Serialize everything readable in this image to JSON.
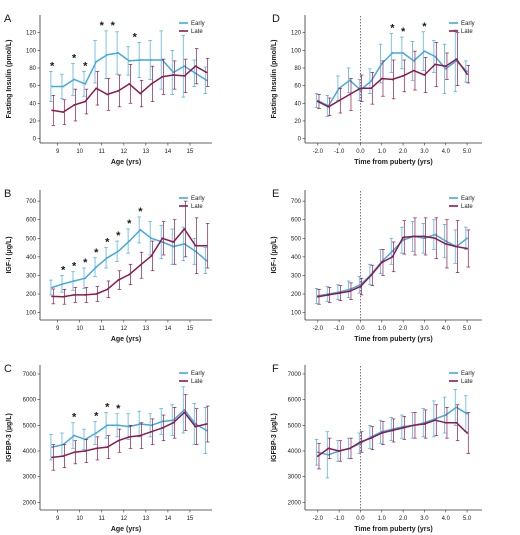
{
  "figure": {
    "colors": {
      "early": "#45a9dc",
      "late": "#8b1a4e",
      "axis": "#333333",
      "marker": "#555555"
    }
  },
  "chart_data": [
    {
      "panel": "A",
      "type": "line",
      "xlabel": "Age (yrs)",
      "ylabel": "Fasting Insulin (pmol/L)",
      "xlim": [
        8.2,
        16.0
      ],
      "ylim": [
        -5,
        140
      ],
      "xticks": [
        9,
        10,
        11,
        12,
        13,
        14,
        15
      ],
      "xtick_labels": [
        "9",
        "10",
        "11",
        "12",
        "13",
        "14",
        "15"
      ],
      "yticks": [
        0,
        20,
        40,
        60,
        80,
        100,
        120
      ],
      "ytick_labels": [
        "0",
        "20",
        "40",
        "60",
        "80",
        "100",
        "120"
      ],
      "x": [
        8.75,
        9.25,
        9.75,
        10.25,
        10.75,
        11.25,
        11.75,
        12.25,
        12.75,
        13.25,
        13.75,
        14.25,
        14.75,
        15.25,
        15.75
      ],
      "series": [
        {
          "name": "Early",
          "color": "#45a9dc",
          "values": [
            59,
            59,
            67,
            62,
            87,
            95,
            97,
            88,
            89,
            89,
            89,
            75,
            82,
            74,
            66
          ],
          "err": [
            17,
            14,
            18,
            14,
            24,
            27,
            24,
            16,
            20,
            22,
            33,
            25,
            35,
            15,
            15
          ]
        },
        {
          "name": "Late",
          "color": "#8b1a4e",
          "values": [
            32,
            30,
            38,
            42,
            57,
            50,
            54,
            62,
            51,
            62,
            70,
            72,
            71,
            82,
            75
          ],
          "err": [
            17,
            14,
            18,
            14,
            19,
            18,
            18,
            22,
            15,
            20,
            20,
            16,
            19,
            20,
            16
          ]
        }
      ],
      "sig_x": [
        8.75,
        9.75,
        10.25,
        11.0,
        11.5,
        12.5
      ],
      "sig_labels": [
        "*",
        "*",
        "*",
        "*",
        "*",
        "*"
      ]
    },
    {
      "panel": "B",
      "type": "line",
      "xlabel": "Age (yrs)",
      "ylabel": "IGF-I (µg/L)",
      "xlim": [
        8.2,
        16.0
      ],
      "ylim": [
        60,
        760
      ],
      "xticks": [
        9,
        10,
        11,
        12,
        13,
        14,
        15
      ],
      "xtick_labels": [
        "9",
        "10",
        "11",
        "12",
        "13",
        "14",
        "15"
      ],
      "yticks": [
        100,
        200,
        300,
        400,
        500,
        600,
        700
      ],
      "ytick_labels": [
        "100",
        "200",
        "300",
        "400",
        "500",
        "600",
        "700"
      ],
      "x": [
        8.75,
        9.25,
        9.75,
        10.25,
        10.75,
        11.25,
        11.75,
        12.25,
        12.75,
        13.25,
        13.75,
        14.25,
        14.75,
        15.25,
        15.75
      ],
      "series": [
        {
          "name": "Early",
          "color": "#45a9dc",
          "values": [
            235,
            255,
            270,
            285,
            345,
            395,
            430,
            485,
            545,
            500,
            480,
            455,
            470,
            430,
            380
          ],
          "err": [
            40,
            45,
            50,
            55,
            50,
            55,
            55,
            65,
            70,
            90,
            90,
            95,
            90,
            70,
            70
          ]
        },
        {
          "name": "Late",
          "color": "#8b1a4e",
          "values": [
            187,
            185,
            195,
            195,
            200,
            225,
            275,
            305,
            355,
            405,
            500,
            480,
            550,
            460,
            460
          ],
          "err": [
            40,
            40,
            40,
            40,
            40,
            45,
            50,
            55,
            70,
            80,
            90,
            120,
            150,
            150,
            120
          ]
        }
      ],
      "sig_x": [
        9.25,
        9.75,
        10.25,
        10.75,
        11.25,
        11.75,
        12.25,
        12.75
      ],
      "sig_labels": [
        "*",
        "*",
        "*",
        "*",
        "*",
        "*",
        "*",
        "*"
      ]
    },
    {
      "panel": "C",
      "type": "line",
      "xlabel": "Age (yrs)",
      "ylabel": "IGFBP-3 (µg/L)",
      "xlim": [
        8.2,
        16.0
      ],
      "ylim": [
        1700,
        7350
      ],
      "xticks": [
        9,
        10,
        11,
        12,
        13,
        14,
        15
      ],
      "xtick_labels": [
        "9",
        "10",
        "11",
        "12",
        "13",
        "14",
        "15"
      ],
      "yticks": [
        2000,
        3000,
        4000,
        5000,
        6000,
        7000
      ],
      "ytick_labels": [
        "2000",
        "3000",
        "4000",
        "5000",
        "6000",
        "7000"
      ],
      "x": [
        8.75,
        9.25,
        9.75,
        10.25,
        10.75,
        11.25,
        11.75,
        12.25,
        12.75,
        13.25,
        13.75,
        14.25,
        14.75,
        15.25,
        15.75
      ],
      "series": [
        {
          "name": "Early",
          "color": "#45a9dc",
          "values": [
            4150,
            4250,
            4600,
            4450,
            4700,
            5000,
            5000,
            4950,
            5050,
            5000,
            5150,
            5200,
            5600,
            5050,
            4800
          ],
          "err": [
            500,
            450,
            500,
            400,
            450,
            500,
            450,
            500,
            500,
            450,
            500,
            600,
            900,
            800,
            900
          ]
        },
        {
          "name": "Late",
          "color": "#8b1a4e",
          "values": [
            3750,
            3800,
            3950,
            4000,
            4100,
            4150,
            4400,
            4550,
            4600,
            4750,
            4900,
            5100,
            5500,
            4950,
            5050
          ],
          "err": [
            500,
            450,
            450,
            450,
            450,
            450,
            450,
            450,
            500,
            500,
            500,
            600,
            700,
            700,
            700
          ]
        }
      ],
      "sig_x": [
        9.75,
        10.75,
        11.25,
        11.75
      ],
      "sig_labels": [
        "*",
        "*",
        "*",
        "*"
      ]
    },
    {
      "panel": "D",
      "type": "line",
      "xlabel": "Time from puberty (yrs)",
      "ylabel": "Fasting Insulin (pmol/L)",
      "xlim": [
        -2.6,
        5.7
      ],
      "ylim": [
        -5,
        140
      ],
      "xticks": [
        -2.0,
        -1.0,
        0.0,
        1.0,
        2.0,
        3.0,
        4.0,
        5.0
      ],
      "xtick_labels": [
        "-2.0",
        "-1.0",
        "0.0",
        "1.0",
        "2.0",
        "3.0",
        "4.0",
        "5.0"
      ],
      "yticks": [
        0,
        20,
        40,
        60,
        80,
        100,
        120
      ],
      "ytick_labels": [
        "0",
        "20",
        "40",
        "60",
        "80",
        "100",
        "120"
      ],
      "x": [
        -2.0,
        -1.5,
        -1.0,
        -0.5,
        0.0,
        0.5,
        1.0,
        1.5,
        2.0,
        2.5,
        3.0,
        3.5,
        4.0,
        4.5,
        5.0
      ],
      "series": [
        {
          "name": "Early",
          "color": "#45a9dc",
          "values": [
            43,
            37,
            57,
            66,
            55,
            65,
            85,
            97,
            97,
            88,
            99,
            93,
            79,
            88,
            76
          ],
          "err": [
            8,
            12,
            14,
            14,
            12,
            14,
            22,
            22,
            18,
            22,
            22,
            18,
            28,
            35,
            12
          ]
        },
        {
          "name": "Late",
          "color": "#8b1a4e",
          "values": [
            42,
            36,
            43,
            50,
            57,
            57,
            68,
            67,
            71,
            77,
            72,
            84,
            82,
            90,
            73
          ],
          "err": [
            8,
            10,
            14,
            18,
            15,
            18,
            20,
            22,
            18,
            22,
            20,
            25,
            15,
            30,
            10
          ]
        }
      ],
      "sig_x": [
        1.5,
        2.0,
        3.0
      ],
      "sig_labels": [
        "*",
        "*",
        "*"
      ]
    },
    {
      "panel": "E",
      "type": "line",
      "xlabel": "Time from puberty (yrs)",
      "ylabel": "IGF-I (µg/L)",
      "xlim": [
        -2.6,
        5.7
      ],
      "ylim": [
        60,
        760
      ],
      "xticks": [
        -2.0,
        -1.0,
        0.0,
        1.0,
        2.0,
        3.0,
        4.0,
        5.0
      ],
      "xtick_labels": [
        "-2.0",
        "-1.0",
        "0.0",
        "1.0",
        "2.0",
        "3.0",
        "4.0",
        "5.0"
      ],
      "yticks": [
        100,
        200,
        300,
        400,
        500,
        600,
        700
      ],
      "ytick_labels": [
        "100",
        "200",
        "300",
        "400",
        "500",
        "600",
        "700"
      ],
      "x": [
        -2.0,
        -1.5,
        -1.0,
        -0.5,
        0.0,
        0.5,
        1.0,
        1.5,
        2.0,
        2.5,
        3.0,
        3.5,
        4.0,
        4.5,
        5.0
      ],
      "series": [
        {
          "name": "Early",
          "color": "#45a9dc",
          "values": [
            190,
            200,
            210,
            225,
            250,
            305,
            375,
            430,
            490,
            510,
            500,
            520,
            485,
            455,
            500
          ],
          "err": [
            40,
            40,
            40,
            45,
            45,
            55,
            65,
            70,
            70,
            80,
            80,
            80,
            90,
            90,
            60
          ]
        },
        {
          "name": "Late",
          "color": "#8b1a4e",
          "values": [
            185,
            195,
            205,
            215,
            240,
            300,
            370,
            400,
            505,
            510,
            510,
            500,
            470,
            455,
            445
          ],
          "err": [
            40,
            40,
            40,
            45,
            45,
            55,
            70,
            80,
            90,
            100,
            100,
            110,
            130,
            140,
            100
          ]
        }
      ],
      "sig_x": [],
      "sig_labels": []
    },
    {
      "panel": "F",
      "type": "line",
      "xlabel": "Time from puberty (yrs)",
      "ylabel": "IGFBP-3 (µg/L)",
      "xlim": [
        -2.6,
        5.7
      ],
      "ylim": [
        1700,
        7350
      ],
      "xticks": [
        -2.0,
        -1.0,
        0.0,
        1.0,
        2.0,
        3.0,
        4.0,
        5.0
      ],
      "xtick_labels": [
        "-2.0",
        "-1.0",
        "0.0",
        "1.0",
        "2.0",
        "3.0",
        "4.0",
        "5.0"
      ],
      "yticks": [
        2000,
        3000,
        4000,
        5000,
        6000,
        7000
      ],
      "ytick_labels": [
        "2000",
        "3000",
        "4000",
        "5000",
        "6000",
        "7000"
      ],
      "x": [
        -2.0,
        -1.5,
        -1.0,
        -0.5,
        0.0,
        0.5,
        1.0,
        1.5,
        2.0,
        2.5,
        3.0,
        3.5,
        4.0,
        4.5,
        5.0
      ],
      "series": [
        {
          "name": "Early",
          "color": "#45a9dc",
          "values": [
            3950,
            3850,
            4000,
            4100,
            4300,
            4550,
            4750,
            4850,
            4950,
            5000,
            5100,
            5250,
            5400,
            5700,
            5450
          ],
          "err": [
            500,
            900,
            400,
            400,
            400,
            450,
            450,
            450,
            450,
            500,
            550,
            700,
            700,
            700,
            700
          ]
        },
        {
          "name": "Late",
          "color": "#8b1a4e",
          "values": [
            3800,
            4100,
            4000,
            4100,
            4350,
            4500,
            4700,
            4800,
            4900,
            5000,
            5050,
            5200,
            5100,
            5100,
            4700
          ],
          "err": [
            500,
            400,
            400,
            400,
            400,
            450,
            450,
            450,
            450,
            500,
            550,
            600,
            600,
            700,
            800
          ]
        }
      ],
      "sig_x": [],
      "sig_labels": []
    }
  ]
}
